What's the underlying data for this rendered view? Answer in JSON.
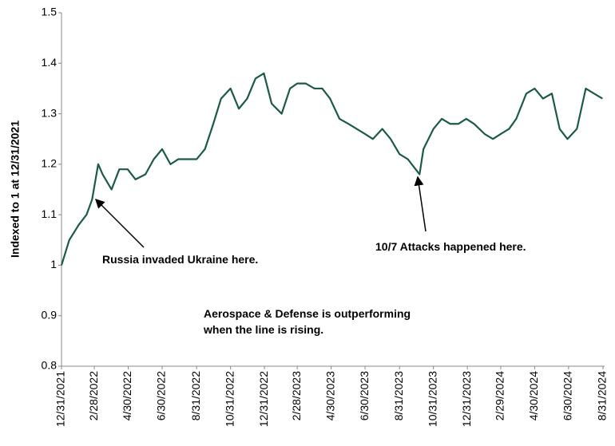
{
  "chart_data": {
    "type": "line",
    "y_label": "Indexed to 1 at 12/31/2021",
    "annotations": [
      "Russia invaded Ukraine here.",
      "10/7 Attacks happened here.",
      "Aerospace & Defense is outperforming",
      "when the line is rising."
    ],
    "x": [
      "12/31/2021",
      "1/14/2022",
      "1/31/2022",
      "2/14/2022",
      "2/24/2022",
      "3/7/2022",
      "3/15/2022",
      "3/31/2022",
      "4/14/2022",
      "4/29/2022",
      "5/13/2022",
      "5/31/2022",
      "6/15/2022",
      "6/30/2022",
      "7/15/2022",
      "7/29/2022",
      "8/15/2022",
      "8/31/2022",
      "9/15/2022",
      "9/30/2022",
      "10/14/2022",
      "10/31/2022",
      "11/15/2022",
      "11/30/2022",
      "12/15/2022",
      "12/30/2022",
      "1/13/2023",
      "1/31/2023",
      "2/15/2023",
      "2/28/2023",
      "3/15/2023",
      "3/31/2023",
      "4/14/2023",
      "4/28/2023",
      "5/15/2023",
      "5/31/2023",
      "6/15/2023",
      "6/30/2023",
      "7/14/2023",
      "7/31/2023",
      "8/15/2023",
      "8/31/2023",
      "9/15/2023",
      "9/29/2023",
      "10/6/2023",
      "10/13/2023",
      "10/31/2023",
      "11/15/2023",
      "11/30/2023",
      "12/15/2023",
      "12/29/2023",
      "1/12/2024",
      "1/31/2024",
      "2/15/2024",
      "2/29/2024",
      "3/15/2024",
      "3/28/2024",
      "4/15/2024",
      "4/30/2024",
      "5/15/2024",
      "5/31/2024",
      "6/14/2024",
      "6/28/2024",
      "7/15/2024",
      "7/31/2024",
      "8/15/2024",
      "8/30/2024"
    ],
    "series": [
      {
        "color": "#1b5a48",
        "values": [
          1.0,
          1.05,
          1.08,
          1.1,
          1.13,
          1.2,
          1.18,
          1.15,
          1.19,
          1.19,
          1.17,
          1.18,
          1.21,
          1.23,
          1.2,
          1.21,
          1.21,
          1.21,
          1.23,
          1.28,
          1.33,
          1.35,
          1.31,
          1.33,
          1.37,
          1.38,
          1.32,
          1.3,
          1.35,
          1.36,
          1.36,
          1.35,
          1.35,
          1.33,
          1.29,
          1.28,
          1.27,
          1.26,
          1.25,
          1.27,
          1.25,
          1.22,
          1.21,
          1.19,
          1.18,
          1.23,
          1.27,
          1.29,
          1.28,
          1.28,
          1.29,
          1.28,
          1.26,
          1.25,
          1.26,
          1.27,
          1.29,
          1.34,
          1.35,
          1.33,
          1.34,
          1.27,
          1.25,
          1.27,
          1.35,
          1.34,
          1.33
        ]
      }
    ],
    "xlim": [
      "12/31/2021",
      "8/31/2024"
    ],
    "xticks": [
      "12/31/2021",
      "2/28/2022",
      "4/30/2022",
      "6/30/2022",
      "8/31/2022",
      "10/31/2022",
      "12/31/2022",
      "2/28/2023",
      "4/30/2023",
      "6/30/2023",
      "8/31/2023",
      "10/31/2023",
      "12/31/2023",
      "2/29/2024",
      "4/30/2024",
      "6/30/2024",
      "8/31/2024"
    ],
    "ylim": [
      0.8,
      1.5
    ],
    "yticks": [
      0.8,
      0.9,
      1,
      1.1,
      1.2,
      1.3,
      1.4,
      1.5
    ],
    "grid": false
  }
}
